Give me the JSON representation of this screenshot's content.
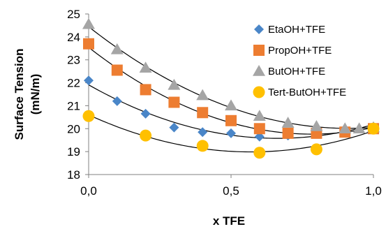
{
  "chart_data": {
    "type": "scatter",
    "xlabel": "x TFE",
    "ylabel_lines": [
      "Surface Tension",
      "(mN/m)"
    ],
    "xlim": [
      0,
      1
    ],
    "ylim": [
      18,
      25
    ],
    "x_ticks": [
      "0,0",
      "0,5",
      "1,0"
    ],
    "y_ticks": [
      "18",
      "19",
      "20",
      "21",
      "22",
      "23",
      "24",
      "25"
    ],
    "grid": false,
    "legend_position": "top-right",
    "series": [
      {
        "name": "EtaOH+TFE",
        "marker": "diamond",
        "color": "#4a86c8",
        "x": [
          0.0,
          0.1,
          0.2,
          0.3,
          0.4,
          0.5,
          0.6,
          0.7,
          0.8,
          0.9,
          1.0
        ],
        "y": [
          22.1,
          21.2,
          20.65,
          20.05,
          19.85,
          19.8,
          19.65,
          19.7,
          19.85,
          19.9,
          20.0
        ]
      },
      {
        "name": "PropOH+TFE",
        "marker": "square",
        "color": "#ed7d31",
        "x": [
          0.0,
          0.1,
          0.2,
          0.3,
          0.4,
          0.5,
          0.6,
          0.7,
          0.8,
          0.9,
          1.0
        ],
        "y": [
          23.7,
          22.55,
          21.7,
          21.15,
          20.7,
          20.35,
          20.0,
          19.8,
          19.8,
          19.85,
          20.0
        ]
      },
      {
        "name": "ButOH+TFE",
        "marker": "triangle",
        "color": "#a5a5a5",
        "x": [
          0.0,
          0.1,
          0.2,
          0.3,
          0.4,
          0.5,
          0.6,
          0.7,
          0.8,
          0.9,
          0.95,
          1.0
        ],
        "y": [
          24.55,
          23.45,
          22.65,
          21.9,
          21.45,
          21.0,
          20.55,
          20.25,
          20.1,
          20.0,
          20.0,
          20.05
        ]
      },
      {
        "name": "Tert-ButOH+TFE",
        "marker": "circle",
        "color": "#ffc000",
        "x": [
          0.0,
          0.2,
          0.4,
          0.6,
          0.8,
          1.0
        ],
        "y": [
          20.55,
          19.7,
          19.25,
          18.95,
          19.1,
          20.0
        ]
      }
    ]
  }
}
